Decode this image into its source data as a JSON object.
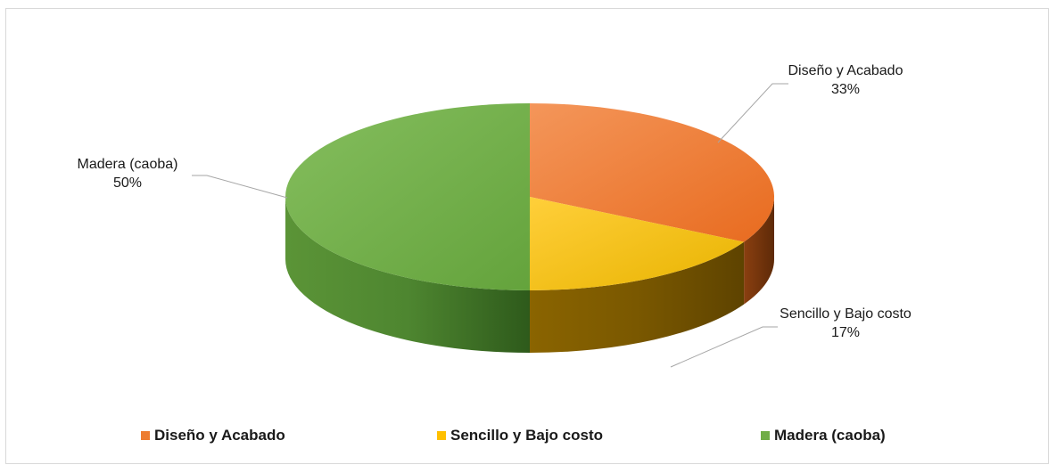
{
  "chart_data": {
    "type": "pie",
    "title": "",
    "categories": [
      "Diseño y Acabado",
      "Sencillo y Bajo costo",
      "Madera (caoba)"
    ],
    "values": [
      33,
      17,
      50
    ],
    "labels": [
      {
        "name": "Diseño y Acabado",
        "percent": "33%"
      },
      {
        "name": "Sencillo y Bajo costo",
        "percent": "17%"
      },
      {
        "name": "Madera (caoba)",
        "percent": "50%"
      }
    ],
    "colors": [
      "#ed7d31",
      "#ffc000",
      "#70ad47"
    ],
    "legend_position": "bottom",
    "style": "3d"
  }
}
